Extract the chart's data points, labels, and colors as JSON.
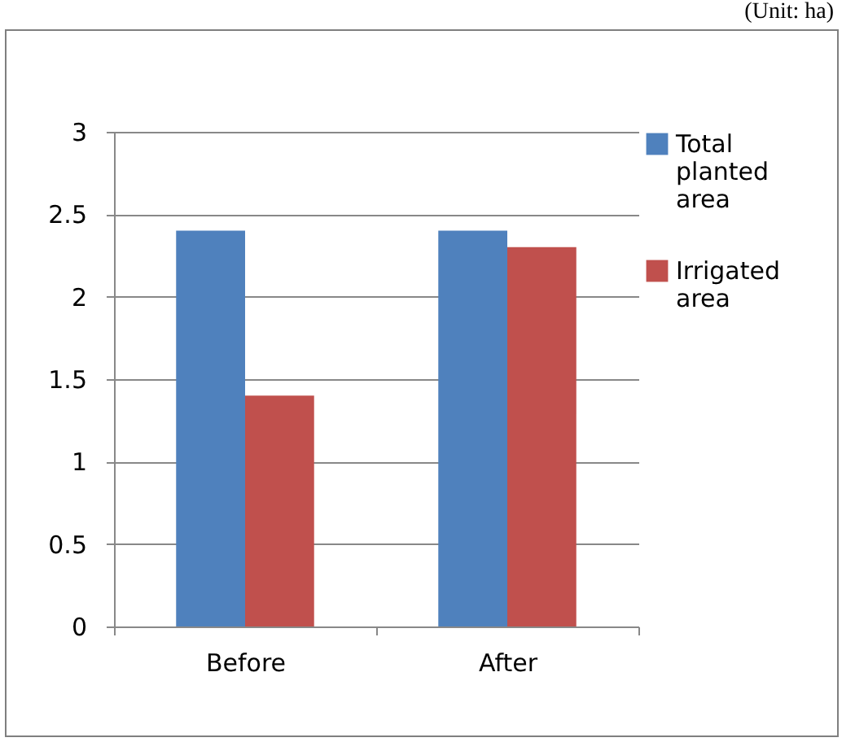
{
  "chart_data": {
    "type": "bar",
    "annotations": [
      "(Unit: ha)"
    ],
    "categories": [
      "Before",
      "After"
    ],
    "series": [
      {
        "name": "Total planted area",
        "color": "#4f81bd",
        "values": [
          2.4,
          2.4
        ]
      },
      {
        "name": "Irrigated area",
        "color": "#c0504d",
        "values": [
          1.4,
          2.3
        ]
      }
    ],
    "ylim": [
      0,
      3
    ],
    "yticks": [
      0,
      0.5,
      1,
      1.5,
      2,
      2.5,
      3
    ],
    "grid": "y",
    "legend": "right"
  }
}
